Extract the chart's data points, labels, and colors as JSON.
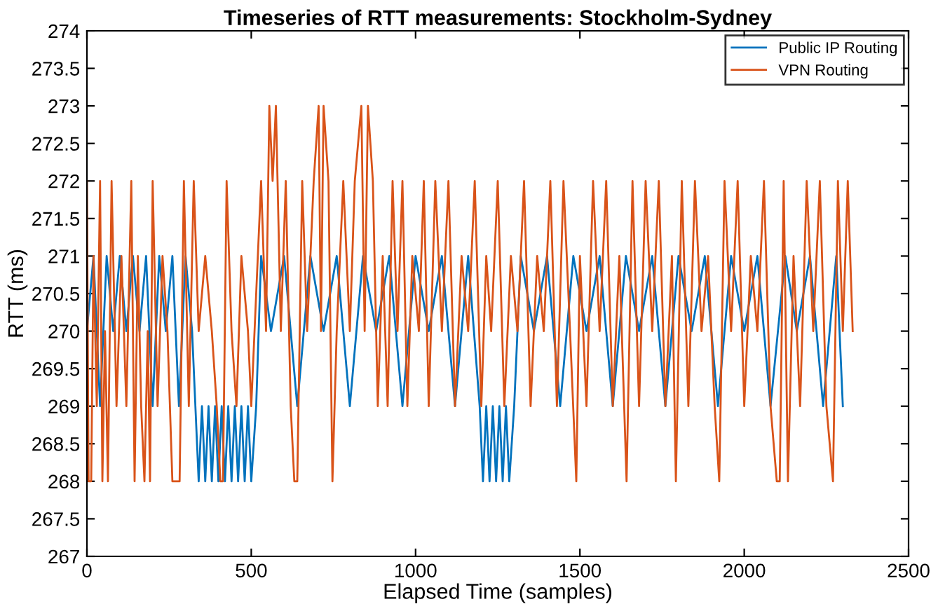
{
  "chart_data": {
    "type": "line",
    "title": "Timeseries of RTT measurements: Stockholm-Sydney",
    "xlabel": "Elapsed Time (samples)",
    "ylabel": "RTT (ms)",
    "xlim": [
      0,
      2500
    ],
    "xticks": [
      0,
      500,
      1000,
      1500,
      2000,
      2500
    ],
    "ylim": [
      267,
      274
    ],
    "yticks": [
      267,
      267.5,
      268,
      268.5,
      269,
      269.5,
      270,
      270.5,
      271,
      271.5,
      272,
      272.5,
      273,
      273.5,
      274
    ],
    "grid": false,
    "legend": "top right",
    "series": [
      {
        "name": "Public IP Routing",
        "color": "#0072bd",
        "x": [
          0,
          20,
          40,
          60,
          80,
          100,
          120,
          140,
          160,
          180,
          200,
          220,
          240,
          260,
          280,
          300,
          320,
          340,
          350,
          360,
          370,
          380,
          390,
          400,
          410,
          420,
          430,
          440,
          450,
          460,
          470,
          480,
          490,
          500,
          515,
          530,
          560,
          600,
          640,
          680,
          720,
          760,
          800,
          840,
          880,
          920,
          960,
          1000,
          1040,
          1080,
          1120,
          1160,
          1195,
          1205,
          1215,
          1225,
          1235,
          1245,
          1255,
          1265,
          1275,
          1285,
          1300,
          1320,
          1360,
          1400,
          1440,
          1480,
          1520,
          1560,
          1600,
          1640,
          1680,
          1720,
          1760,
          1800,
          1840,
          1880,
          1920,
          1960,
          2000,
          2040,
          2080,
          2125,
          2160,
          2200,
          2240,
          2280,
          2300
        ],
        "values": [
          270,
          271,
          269,
          271,
          270,
          271,
          270,
          271,
          270,
          271,
          269,
          271,
          270,
          271,
          269,
          271,
          270,
          268,
          269,
          268,
          269,
          268,
          269,
          268,
          269,
          268,
          269,
          268,
          269,
          268,
          269,
          268,
          269,
          268,
          269,
          271,
          270,
          271,
          269,
          271,
          270,
          271,
          269,
          271,
          270,
          271,
          269,
          271,
          270,
          271,
          269,
          271,
          269,
          268,
          269,
          268,
          269,
          268,
          269,
          268,
          269,
          268,
          269,
          271,
          270,
          271,
          269,
          271,
          270,
          271,
          269,
          271,
          270,
          271,
          269,
          271,
          270,
          271,
          269,
          271,
          270,
          271,
          269,
          271,
          270,
          271,
          269,
          271,
          269
        ]
      },
      {
        "name": "VPN Routing",
        "color": "#d95319",
        "x": [
          0,
          5,
          13,
          20,
          30,
          40,
          47,
          55,
          64,
          75,
          90,
          105,
          120,
          135,
          145,
          155,
          165,
          175,
          185,
          192,
          200,
          215,
          230,
          245,
          260,
          269,
          282,
          295,
          310,
          325,
          340,
          360,
          380,
          395,
          406,
          414,
          425,
          440,
          455,
          470,
          490,
          500,
          510,
          530,
          545,
          555,
          565,
          575,
          590,
          605,
          620,
          631,
          640,
          655,
          670,
          690,
          705,
          712,
          720,
          735,
          747,
          760,
          780,
          800,
          815,
          835,
          845,
          855,
          870,
          885,
          900,
          915,
          930,
          945,
          960,
          975,
          990,
          1010,
          1025,
          1040,
          1060,
          1080,
          1100,
          1120,
          1140,
          1160,
          1180,
          1200,
          1215,
          1230,
          1250,
          1270,
          1290,
          1310,
          1330,
          1350,
          1370,
          1390,
          1410,
          1430,
          1450,
          1470,
          1489,
          1500,
          1520,
          1540,
          1560,
          1580,
          1600,
          1620,
          1642,
          1660,
          1680,
          1700,
          1720,
          1740,
          1760,
          1780,
          1792,
          1810,
          1830,
          1850,
          1870,
          1890,
          1910,
          1924,
          1940,
          1960,
          1980,
          2000,
          2020,
          2040,
          2060,
          2080,
          2099,
          2108,
          2120,
          2133,
          2150,
          2170,
          2190,
          2210,
          2230,
          2250,
          2270,
          2285,
          2300,
          2315,
          2330
        ],
        "values": [
          272,
          268,
          268,
          271,
          269,
          272,
          268,
          270,
          268,
          272,
          269,
          271,
          269,
          272,
          268,
          271,
          269,
          268,
          270,
          268,
          272,
          269,
          271,
          270,
          268,
          268,
          268,
          272,
          269,
          272,
          270,
          271,
          270,
          269,
          268,
          268,
          272,
          270,
          269,
          271,
          270,
          269,
          270,
          272,
          270,
          273,
          272,
          273,
          270,
          272,
          269,
          268,
          268,
          272,
          270,
          272,
          273,
          270,
          273,
          272,
          268,
          270,
          272,
          270,
          272,
          273,
          270,
          273,
          272,
          269,
          271,
          269,
          272,
          270,
          272,
          269,
          271,
          270,
          272,
          269,
          272,
          270,
          272,
          269,
          271,
          270,
          272,
          269,
          271,
          270,
          272,
          269,
          271,
          270,
          272,
          269,
          271,
          270,
          272,
          269,
          272,
          270,
          268,
          271,
          269,
          272,
          270,
          272,
          269,
          271,
          268,
          272,
          269,
          272,
          270,
          272,
          269,
          271,
          268,
          272,
          269,
          272,
          270,
          271,
          269,
          268,
          272,
          270,
          272,
          269,
          271,
          270,
          272,
          269,
          268,
          268,
          272,
          268,
          271,
          269,
          272,
          270,
          272,
          269,
          268,
          272,
          270,
          272,
          270
        ]
      }
    ]
  }
}
